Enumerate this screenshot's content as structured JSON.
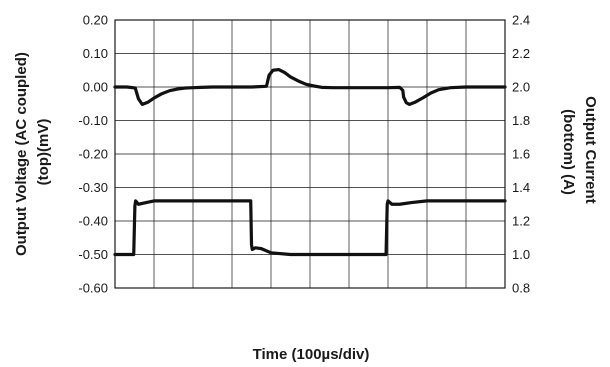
{
  "chart_data": {
    "type": "line",
    "xlabel": "Time (100µs/div)",
    "ylabel_left": [
      "Output Voltage (AC coupled)",
      "(top)(mV)"
    ],
    "ylabel_right": [
      "Output Current",
      "(bottom) (A)"
    ],
    "divisions": 10,
    "y_left": {
      "lim": [
        -0.6,
        0.2
      ],
      "ticks": [
        "0.20",
        "0.10",
        "0.00",
        "-0.10",
        "-0.20",
        "-0.30",
        "-0.40",
        "-0.50",
        "-0.60"
      ]
    },
    "y_right": {
      "lim": [
        0.8,
        2.4
      ],
      "ticks": [
        "2.4",
        "2.2",
        "2.0",
        "1.8",
        "1.6",
        "1.4",
        "1.2",
        "1.0",
        "0.8"
      ]
    },
    "grid": true,
    "series": [
      {
        "axis": "left",
        "x": [
          0,
          0.3,
          0.52,
          0.55,
          0.6,
          0.7,
          0.85,
          1.0,
          1.2,
          1.4,
          1.6,
          1.8,
          2.0,
          2.2,
          2.5,
          3.0,
          3.5,
          3.88,
          3.9,
          3.95,
          4.05,
          4.2,
          4.35,
          4.5,
          4.7,
          4.9,
          5.1,
          5.3,
          5.6,
          6.0,
          6.5,
          7.0,
          7.3,
          7.38,
          7.4,
          7.47,
          7.55,
          7.7,
          7.9,
          8.1,
          8.3,
          8.6,
          9.0,
          9.5,
          10
        ],
        "y": [
          0,
          0,
          -0.003,
          -0.015,
          -0.035,
          -0.052,
          -0.045,
          -0.033,
          -0.02,
          -0.011,
          -0.006,
          -0.003,
          -0.002,
          -0.001,
          0,
          0,
          0,
          0.002,
          0.01,
          0.035,
          0.05,
          0.052,
          0.043,
          0.03,
          0.018,
          0.008,
          0.003,
          -0.001,
          -0.002,
          -0.002,
          -0.002,
          -0.002,
          -0.001,
          -0.01,
          -0.03,
          -0.047,
          -0.052,
          -0.045,
          -0.032,
          -0.018,
          -0.008,
          -0.002,
          0,
          0,
          0
        ]
      },
      {
        "axis": "right",
        "x": [
          0,
          0.3,
          0.48,
          0.51,
          0.53,
          0.6,
          0.8,
          1.0,
          1.5,
          2.0,
          2.5,
          3.0,
          3.48,
          3.5,
          3.52,
          3.6,
          3.75,
          4.0,
          4.5,
          5.0,
          5.5,
          6.0,
          6.5,
          6.9,
          6.95,
          6.98,
          7.0,
          7.1,
          7.3,
          7.6,
          8.0,
          8.5,
          9.0,
          9.5,
          10
        ],
        "y": [
          1.0,
          1.0,
          1.0,
          1.29,
          1.32,
          1.3,
          1.31,
          1.32,
          1.32,
          1.32,
          1.32,
          1.32,
          1.32,
          1.06,
          1.03,
          1.04,
          1.035,
          1.01,
          1.0,
          1.0,
          1.0,
          1.0,
          1.0,
          1.0,
          1.0,
          1.3,
          1.32,
          1.3,
          1.3,
          1.31,
          1.32,
          1.32,
          1.32,
          1.32,
          1.32
        ]
      }
    ]
  }
}
